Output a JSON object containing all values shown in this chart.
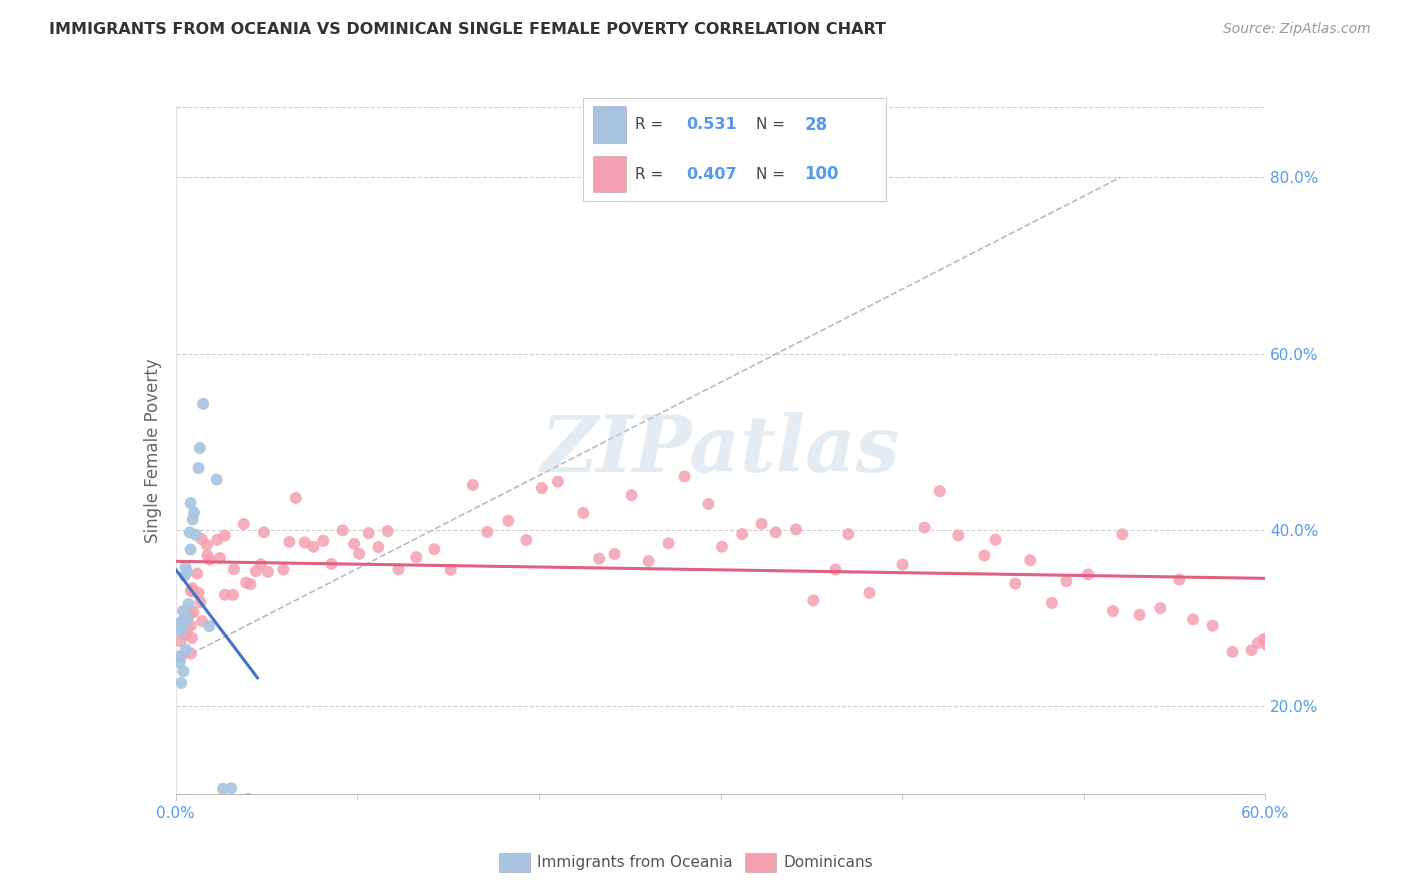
{
  "title": "IMMIGRANTS FROM OCEANIA VS DOMINICAN SINGLE FEMALE POVERTY CORRELATION CHART",
  "source": "Source: ZipAtlas.com",
  "ylabel": "Single Female Poverty",
  "xlim": [
    0.0,
    0.6
  ],
  "ylim": [
    0.1,
    0.88
  ],
  "x_ticks": [
    0.0,
    0.1,
    0.2,
    0.3,
    0.4,
    0.5,
    0.6
  ],
  "x_tick_labels": [
    "0.0%",
    "",
    "",
    "",
    "",
    "",
    "60.0%"
  ],
  "y_ticks_right": [
    0.2,
    0.4,
    0.6,
    0.8
  ],
  "y_tick_labels_right": [
    "20.0%",
    "40.0%",
    "60.0%",
    "80.0%"
  ],
  "R_oceania": 0.531,
  "N_oceania": 28,
  "R_dominican": 0.407,
  "N_dominican": 100,
  "oceania_color": "#a8c4e0",
  "dominican_color": "#f4a0b0",
  "trend_oceania_color": "#4472c4",
  "trend_dominican_color": "#e06080",
  "watermark": "ZIPatlas",
  "background_color": "#ffffff",
  "grid_color": "#cccccc",
  "oceania_x": [
    0.001,
    0.002,
    0.002,
    0.003,
    0.003,
    0.004,
    0.004,
    0.004,
    0.005,
    0.005,
    0.005,
    0.006,
    0.006,
    0.007,
    0.007,
    0.008,
    0.008,
    0.009,
    0.01,
    0.01,
    0.011,
    0.013,
    0.015,
    0.018,
    0.022,
    0.025,
    0.03,
    0.04
  ],
  "oceania_y": [
    0.24,
    0.27,
    0.28,
    0.26,
    0.28,
    0.27,
    0.29,
    0.31,
    0.28,
    0.3,
    0.36,
    0.29,
    0.33,
    0.34,
    0.37,
    0.38,
    0.41,
    0.43,
    0.44,
    0.37,
    0.46,
    0.49,
    0.53,
    0.28,
    0.48,
    0.15,
    0.14,
    0.13
  ],
  "dominican_x": [
    0.001,
    0.002,
    0.003,
    0.003,
    0.004,
    0.004,
    0.005,
    0.005,
    0.006,
    0.006,
    0.007,
    0.007,
    0.008,
    0.009,
    0.01,
    0.011,
    0.012,
    0.013,
    0.014,
    0.015,
    0.017,
    0.018,
    0.02,
    0.022,
    0.025,
    0.027,
    0.03,
    0.032,
    0.035,
    0.038,
    0.04,
    0.042,
    0.045,
    0.048,
    0.05,
    0.055,
    0.06,
    0.065,
    0.07,
    0.075,
    0.08,
    0.085,
    0.09,
    0.095,
    0.1,
    0.105,
    0.11,
    0.115,
    0.12,
    0.13,
    0.14,
    0.15,
    0.16,
    0.17,
    0.18,
    0.19,
    0.2,
    0.21,
    0.22,
    0.23,
    0.24,
    0.25,
    0.26,
    0.27,
    0.28,
    0.29,
    0.3,
    0.31,
    0.32,
    0.33,
    0.34,
    0.35,
    0.36,
    0.37,
    0.38,
    0.4,
    0.41,
    0.42,
    0.43,
    0.44,
    0.45,
    0.46,
    0.47,
    0.48,
    0.49,
    0.5,
    0.51,
    0.52,
    0.53,
    0.54,
    0.55,
    0.56,
    0.57,
    0.58,
    0.59,
    0.595,
    0.598,
    0.6,
    0.6,
    0.6
  ],
  "dominican_y": [
    0.27,
    0.27,
    0.28,
    0.3,
    0.28,
    0.27,
    0.29,
    0.32,
    0.28,
    0.3,
    0.29,
    0.31,
    0.33,
    0.35,
    0.32,
    0.34,
    0.3,
    0.33,
    0.36,
    0.35,
    0.38,
    0.37,
    0.4,
    0.38,
    0.42,
    0.36,
    0.33,
    0.35,
    0.37,
    0.36,
    0.38,
    0.35,
    0.37,
    0.39,
    0.36,
    0.38,
    0.4,
    0.42,
    0.38,
    0.4,
    0.37,
    0.39,
    0.41,
    0.38,
    0.4,
    0.42,
    0.38,
    0.4,
    0.36,
    0.38,
    0.4,
    0.37,
    0.39,
    0.41,
    0.38,
    0.4,
    0.42,
    0.43,
    0.41,
    0.38,
    0.4,
    0.42,
    0.39,
    0.41,
    0.43,
    0.4,
    0.38,
    0.4,
    0.42,
    0.39,
    0.41,
    0.35,
    0.37,
    0.39,
    0.36,
    0.38,
    0.4,
    0.41,
    0.39,
    0.37,
    0.35,
    0.36,
    0.38,
    0.3,
    0.32,
    0.34,
    0.36,
    0.38,
    0.29,
    0.31,
    0.33,
    0.27,
    0.29,
    0.28,
    0.3,
    0.27,
    0.29,
    0.28,
    0.3,
    0.28
  ]
}
